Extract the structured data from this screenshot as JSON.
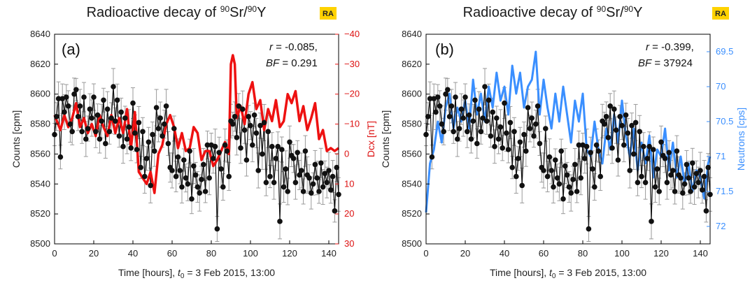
{
  "colors": {
    "counts": "#111111",
    "errorbars": "#9a9a9a",
    "dcx": "#ee1111",
    "neutrons": "#3a8fff",
    "badge": "#ffd200"
  },
  "chart_data": [
    {
      "type": "line",
      "panel_label": "(a)",
      "title_main": "Radioactive decay of ",
      "title_sup1": "90",
      "title_mid": "Sr/",
      "title_sup2": "90",
      "title_end": "Y",
      "badge": "RA",
      "xlabel_main": "Time [hours], ",
      "xlabel_t": "t",
      "xlabel_sub": "0",
      "xlabel_end": " = 3 Feb 2015, 13:00",
      "ylabel": "Counts [cpm]",
      "y2label": "Dcx [nT]",
      "xlim": [
        0,
        145
      ],
      "ylim": [
        8500,
        8640
      ],
      "y2lim": [
        30,
        -40
      ],
      "xticks": [
        "0",
        "20",
        "40",
        "60",
        "80",
        "100",
        "120",
        "140"
      ],
      "yticks": [
        "8500",
        "8520",
        "8540",
        "8560",
        "8580",
        "8600",
        "8620",
        "8640"
      ],
      "y2ticks": [
        "30",
        "20",
        "10",
        "0",
        "−10",
        "−20",
        "−30",
        "−40"
      ],
      "stat_r": "r",
      "stat_r_val": " = -0.085,",
      "stat_bf": "BF",
      "stat_bf_val": " = 0.291",
      "series": [
        {
          "role": "counts",
          "x": [
            0,
            1,
            2,
            3,
            4,
            5,
            6,
            7,
            8,
            9,
            10,
            11,
            12,
            13,
            14,
            15,
            16,
            17,
            18,
            19,
            20,
            21,
            22,
            23,
            24,
            25,
            26,
            27,
            28,
            29,
            30,
            31,
            32,
            33,
            34,
            35,
            36,
            37,
            38,
            39,
            40,
            41,
            42,
            43,
            44,
            45,
            46,
            47,
            48,
            49,
            50,
            51,
            52,
            53,
            54,
            55,
            56,
            57,
            58,
            59,
            60,
            61,
            62,
            63,
            64,
            65,
            66,
            67,
            68,
            69,
            70,
            71,
            72,
            73,
            74,
            75,
            76,
            77,
            78,
            79,
            80,
            81,
            82,
            83,
            84,
            85,
            86,
            87,
            88,
            89,
            90,
            91,
            92,
            93,
            94,
            95,
            96,
            97,
            98,
            99,
            100,
            101,
            102,
            103,
            104,
            105,
            106,
            107,
            108,
            109,
            110,
            111,
            112,
            113,
            114,
            115,
            116,
            117,
            118,
            119,
            120,
            121,
            122,
            123,
            124,
            125,
            126,
            127,
            128,
            129,
            130,
            131,
            132,
            133,
            134,
            135,
            136,
            137,
            138,
            139,
            140,
            141,
            142,
            143,
            144,
            145
          ],
          "y": [
            8573,
            8585,
            8597,
            8558,
            8597,
            8588,
            8598,
            8592,
            8580,
            8575,
            8600,
            8603,
            8585,
            8592,
            8575,
            8598,
            8570,
            8577,
            8590,
            8584,
            8598,
            8575,
            8586,
            8570,
            8582,
            8596,
            8567,
            8590,
            8575,
            8584,
            8605,
            8582,
            8596,
            8572,
            8588,
            8565,
            8584,
            8570,
            8578,
            8564,
            8594,
            8574,
            8563,
            8581,
            8551,
            8575,
            8545,
            8557,
            8568,
            8539,
            8573,
            8562,
            8591,
            8577,
            8584,
            8572,
            8580,
            8592,
            8567,
            8551,
            8549,
            8577,
            8545,
            8558,
            8549,
            8538,
            8556,
            8544,
            8540,
            8562,
            8530,
            8552,
            8546,
            8538,
            8534,
            8543,
            8553,
            8535,
            8566,
            8544,
            8566,
            8557,
            8565,
            8510,
            8561,
            8550,
            8538,
            8566,
            8562,
            8545,
            8582,
            8580,
            8585,
            8571,
            8592,
            8564,
            8590,
            8576,
            8556,
            8585,
            8579,
            8566,
            8586,
            8574,
            8549,
            8579,
            8560,
            8581,
            8541,
            8575,
            8545,
            8565,
            8541,
            8557,
            8565,
            8515,
            8563,
            8538,
            8550,
            8535,
            8568,
            8559,
            8557,
            8541,
            8561,
            8546,
            8549,
            8535,
            8562,
            8546,
            8544,
            8534,
            8540,
            8553,
            8544,
            8535,
            8554,
            8538,
            8547,
            8541,
            8549,
            8536,
            8545,
            8522,
            8551,
            8533
          ]
        },
        {
          "role": "dcx",
          "x": [
            0,
            3,
            5,
            7,
            9,
            11,
            13,
            15,
            17,
            19,
            21,
            23,
            25,
            27,
            29,
            31,
            33,
            35,
            37,
            39,
            41,
            43,
            45,
            47,
            49,
            51,
            53,
            55,
            57,
            59,
            61,
            63,
            65,
            67,
            69,
            71,
            73,
            75,
            77,
            79,
            81,
            83,
            85,
            87,
            89,
            90,
            91,
            92,
            93,
            95,
            97,
            99,
            101,
            103,
            105,
            107,
            109,
            111,
            113,
            115,
            117,
            119,
            121,
            123,
            125,
            127,
            129,
            131,
            133,
            135,
            137,
            139,
            141,
            143,
            145
          ],
          "y": [
            -13,
            -8,
            -13,
            -9,
            -12,
            -17,
            -9,
            -12,
            -7,
            -10,
            -6,
            -13,
            -9,
            -6,
            -13,
            -7,
            -12,
            -7,
            -15,
            -2,
            -14,
            6,
            8,
            10,
            6,
            13,
            0,
            -3,
            -10,
            -13,
            -9,
            -2,
            -7,
            -1,
            -2,
            -9,
            -7,
            2,
            -1,
            -1,
            4,
            2,
            -1,
            -4,
            0,
            -30,
            -33,
            -30,
            -12,
            -16,
            -10,
            -20,
            -24,
            -15,
            -18,
            -8,
            -15,
            -11,
            -18,
            -9,
            -11,
            -20,
            -17,
            -21,
            -11,
            -16,
            -8,
            -12,
            -17,
            -5,
            -8,
            -1,
            -2,
            -1,
            -2
          ]
        }
      ]
    },
    {
      "type": "line",
      "panel_label": "(b)",
      "title_main": "Radioactive decay of ",
      "title_sup1": "90",
      "title_mid": "Sr/",
      "title_sup2": "90",
      "title_end": "Y",
      "badge": "RA",
      "xlabel_main": "Time [hours], ",
      "xlabel_t": "t",
      "xlabel_sub": "0",
      "xlabel_end": " = 3 Feb 2015, 13:00",
      "ylabel": "Counts [cpm]",
      "y2label": "Neutrons [cps]",
      "xlim": [
        0,
        145
      ],
      "ylim": [
        8500,
        8640
      ],
      "y2lim": [
        72.25,
        69.25
      ],
      "xticks": [
        "0",
        "20",
        "40",
        "60",
        "80",
        "100",
        "120",
        "140"
      ],
      "yticks": [
        "8500",
        "8520",
        "8540",
        "8560",
        "8580",
        "8600",
        "8620",
        "8640"
      ],
      "y2ticks": [
        "72",
        "71.5",
        "71",
        "70.5",
        "70",
        "69.5"
      ],
      "y2tick_values": [
        72,
        71.5,
        71,
        70.5,
        70,
        69.5
      ],
      "stat_r": "r",
      "stat_r_val": " = -0.399,",
      "stat_bf": "BF",
      "stat_bf_val": " = 37924",
      "series": [
        {
          "role": "counts",
          "x": [
            0,
            1,
            2,
            3,
            4,
            5,
            6,
            7,
            8,
            9,
            10,
            11,
            12,
            13,
            14,
            15,
            16,
            17,
            18,
            19,
            20,
            21,
            22,
            23,
            24,
            25,
            26,
            27,
            28,
            29,
            30,
            31,
            32,
            33,
            34,
            35,
            36,
            37,
            38,
            39,
            40,
            41,
            42,
            43,
            44,
            45,
            46,
            47,
            48,
            49,
            50,
            51,
            52,
            53,
            54,
            55,
            56,
            57,
            58,
            59,
            60,
            61,
            62,
            63,
            64,
            65,
            66,
            67,
            68,
            69,
            70,
            71,
            72,
            73,
            74,
            75,
            76,
            77,
            78,
            79,
            80,
            81,
            82,
            83,
            84,
            85,
            86,
            87,
            88,
            89,
            90,
            91,
            92,
            93,
            94,
            95,
            96,
            97,
            98,
            99,
            100,
            101,
            102,
            103,
            104,
            105,
            106,
            107,
            108,
            109,
            110,
            111,
            112,
            113,
            114,
            115,
            116,
            117,
            118,
            119,
            120,
            121,
            122,
            123,
            124,
            125,
            126,
            127,
            128,
            129,
            130,
            131,
            132,
            133,
            134,
            135,
            136,
            137,
            138,
            139,
            140,
            141,
            142,
            143,
            144,
            145
          ],
          "y": [
            8573,
            8585,
            8597,
            8558,
            8597,
            8588,
            8598,
            8592,
            8580,
            8575,
            8600,
            8603,
            8585,
            8592,
            8575,
            8598,
            8570,
            8577,
            8590,
            8584,
            8598,
            8575,
            8586,
            8570,
            8582,
            8596,
            8567,
            8590,
            8575,
            8584,
            8605,
            8582,
            8596,
            8572,
            8588,
            8565,
            8584,
            8570,
            8578,
            8564,
            8594,
            8574,
            8563,
            8581,
            8551,
            8575,
            8545,
            8557,
            8568,
            8539,
            8573,
            8562,
            8591,
            8577,
            8584,
            8572,
            8580,
            8592,
            8567,
            8551,
            8549,
            8577,
            8545,
            8558,
            8549,
            8538,
            8556,
            8544,
            8540,
            8562,
            8530,
            8552,
            8546,
            8538,
            8534,
            8543,
            8553,
            8535,
            8566,
            8544,
            8566,
            8557,
            8565,
            8510,
            8561,
            8550,
            8538,
            8566,
            8562,
            8545,
            8582,
            8580,
            8585,
            8571,
            8592,
            8564,
            8590,
            8576,
            8556,
            8585,
            8579,
            8566,
            8586,
            8574,
            8549,
            8579,
            8560,
            8581,
            8541,
            8575,
            8545,
            8565,
            8541,
            8557,
            8565,
            8515,
            8563,
            8538,
            8550,
            8535,
            8568,
            8559,
            8557,
            8541,
            8561,
            8546,
            8549,
            8535,
            8562,
            8546,
            8544,
            8534,
            8540,
            8553,
            8544,
            8535,
            8554,
            8538,
            8547,
            8541,
            8549,
            8536,
            8545,
            8522,
            8551,
            8533
          ]
        },
        {
          "role": "neutrons",
          "x": [
            0,
            2,
            4,
            6,
            8,
            10,
            12,
            14,
            16,
            18,
            20,
            22,
            24,
            26,
            28,
            30,
            32,
            34,
            36,
            38,
            40,
            42,
            44,
            46,
            48,
            50,
            52,
            54,
            56,
            58,
            60,
            62,
            64,
            66,
            68,
            70,
            72,
            74,
            76,
            78,
            80,
            82,
            84,
            86,
            88,
            90,
            92,
            94,
            96,
            98,
            100,
            102,
            104,
            106,
            108,
            110,
            112,
            114,
            116,
            118,
            120,
            122,
            124,
            126,
            128,
            130,
            132,
            134,
            136,
            138,
            140,
            142,
            144,
            145
          ],
          "y": [
            71.8,
            71.1,
            70.9,
            70.5,
            70.8,
            70.3,
            70.1,
            70.6,
            70.3,
            70.5,
            70.2,
            70.6,
            69.9,
            70.4,
            70.1,
            70.5,
            70.0,
            70.3,
            69.8,
            70.2,
            70.0,
            70.4,
            69.7,
            70.1,
            69.8,
            70.3,
            70.0,
            69.9,
            69.5,
            70.4,
            69.9,
            70.3,
            70.6,
            70.1,
            70.5,
            70.0,
            70.4,
            70.8,
            70.2,
            70.5,
            70.1,
            70.9,
            71.0,
            70.5,
            70.9,
            71.1,
            70.6,
            70.9,
            70.4,
            70.8,
            70.2,
            70.7,
            71.0,
            70.6,
            71.2,
            70.8,
            71.1,
            70.7,
            71.3,
            70.9,
            71.0,
            70.6,
            71.2,
            70.8,
            71.3,
            71.0,
            71.4,
            71.1,
            71.5,
            71.2,
            71.3,
            71.6,
            71.1,
            71.0
          ]
        }
      ]
    }
  ]
}
